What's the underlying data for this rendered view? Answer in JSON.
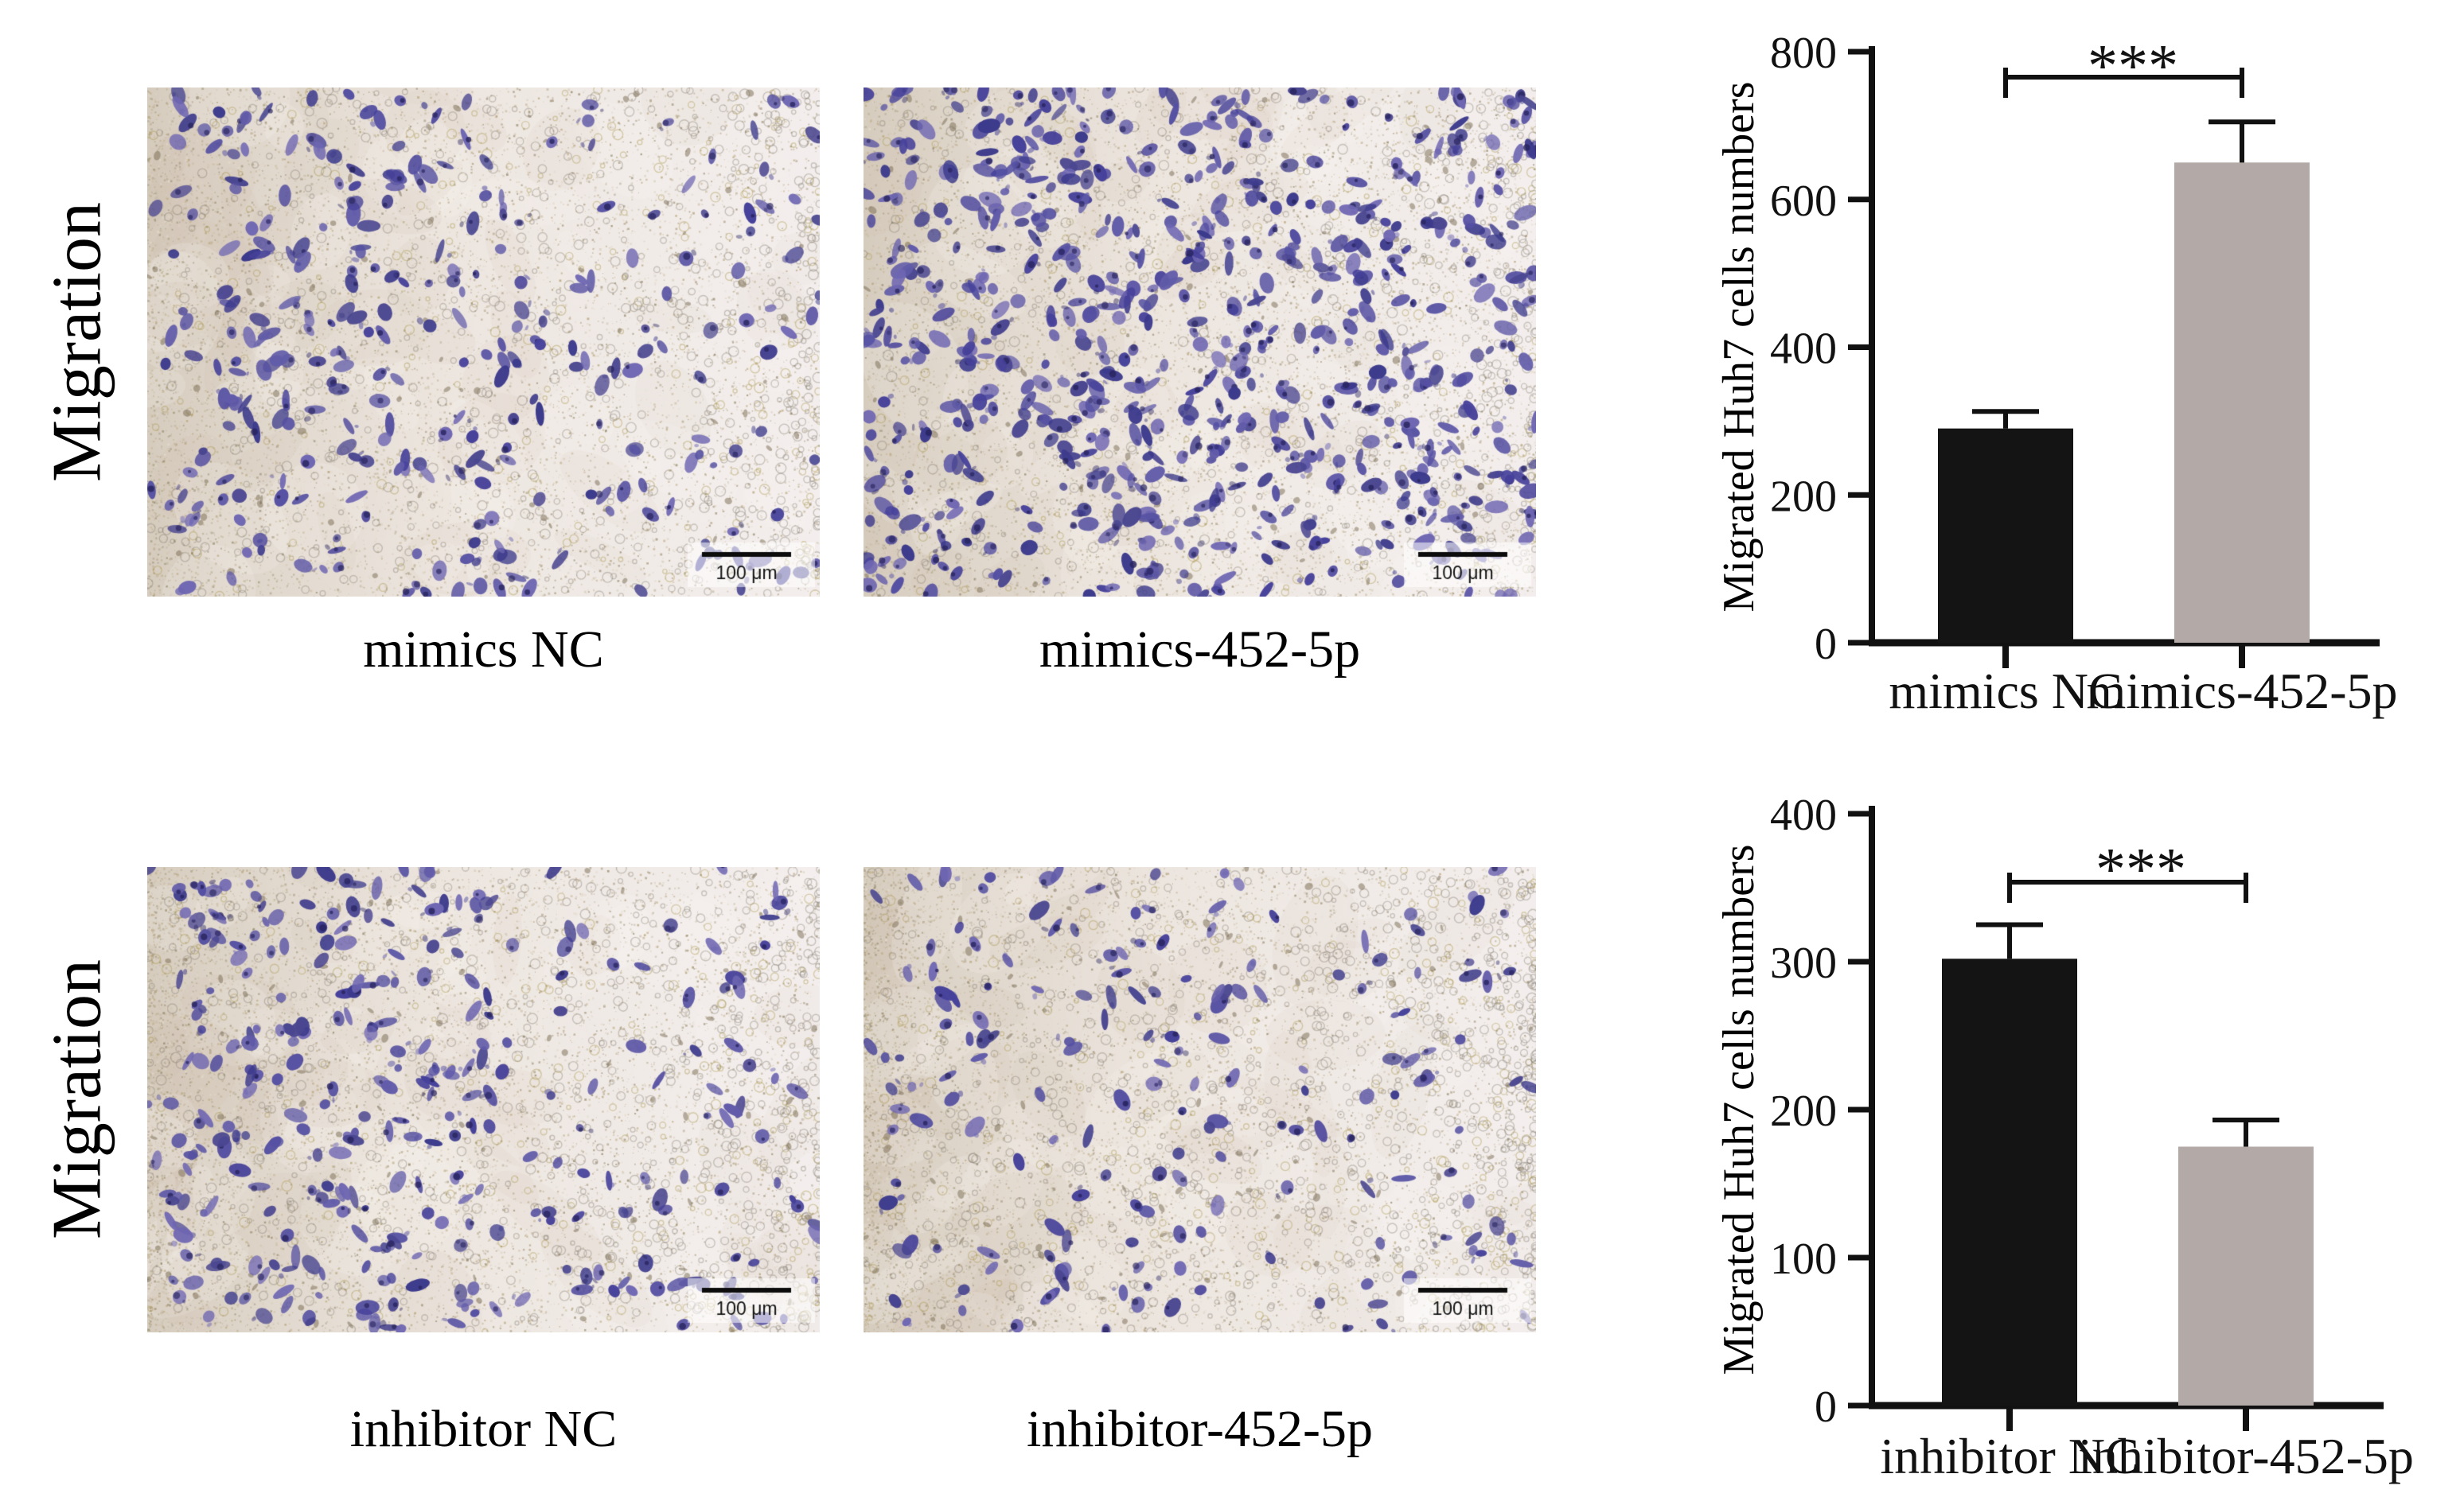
{
  "figure": {
    "rows": [
      {
        "row_label": "Migration",
        "panels": [
          {
            "label": "mimics NC",
            "scale_bar": "100 μm",
            "stain": "crystal-violet",
            "render": {
              "seed": 101,
              "cells": 300,
              "speckles": 10500,
              "rings": 900,
              "bias": 1.35,
              "cluster": "left"
            }
          },
          {
            "label": "mimics-452-5p",
            "scale_bar": "100 μm",
            "stain": "crystal-violet",
            "render": {
              "seed": 202,
              "cells": 665,
              "speckles": 11000,
              "rings": 750,
              "bias": 1.05,
              "cluster": "none"
            }
          }
        ]
      },
      {
        "row_label": "Migration",
        "panels": [
          {
            "label": "inhibitor NC",
            "scale_bar": "100 μm",
            "stain": "crystal-violet",
            "render": {
              "seed": 303,
              "cells": 310,
              "speckles": 11500,
              "rings": 1000,
              "bias": 1.5,
              "cluster": "left"
            }
          },
          {
            "label": "inhibitor-452-5p",
            "scale_bar": "100 μm",
            "stain": "crystal-violet",
            "render": {
              "seed": 404,
              "cells": 180,
              "speckles": 10500,
              "rings": 1250,
              "bias": 1.6,
              "cluster": "left"
            }
          }
        ]
      }
    ]
  },
  "chart_data": [
    {
      "type": "bar",
      "title": "",
      "categories": [
        "mimics NC",
        "mimics-452-5p"
      ],
      "values": [
        290,
        650
      ],
      "errors_plus": [
        23,
        55
      ],
      "xlabel": "",
      "ylabel": "Migrated Huh7 cells numbers",
      "ylim": [
        0,
        800
      ],
      "yticks": [
        0,
        200,
        400,
        600,
        800
      ],
      "bar_colors": [
        "#141414",
        "#b3a9a6"
      ],
      "grid": false,
      "legend": "none",
      "significance": {
        "label": "***",
        "between": [
          0,
          1
        ]
      }
    },
    {
      "type": "bar",
      "title": "",
      "categories": [
        "inhibitor NC",
        "inhibitor-452-5p"
      ],
      "values": [
        302,
        175
      ],
      "errors_plus": [
        23,
        18
      ],
      "xlabel": "",
      "ylabel": "Migrated Huh7 cells numbers",
      "ylim": [
        0,
        400
      ],
      "yticks": [
        0,
        100,
        200,
        300,
        400
      ],
      "bar_colors": [
        "#141414",
        "#b3a9a6"
      ],
      "grid": false,
      "legend": "none",
      "significance": {
        "label": "***",
        "between": [
          0,
          1
        ]
      }
    }
  ]
}
